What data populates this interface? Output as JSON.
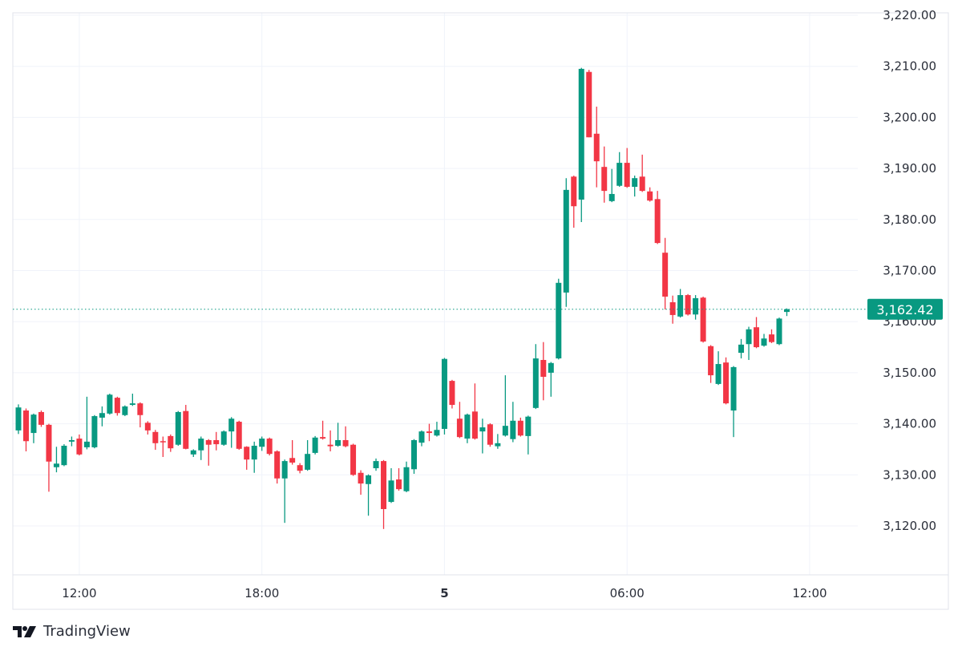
{
  "brand": {
    "name": "TradingView",
    "logo_text": "TV"
  },
  "colors": {
    "up": "#089981",
    "down": "#f23645",
    "grid": "#f0f3fa",
    "border": "#e0e3eb",
    "text": "#2a2e39"
  },
  "chart_data": {
    "type": "candlestick",
    "title": "",
    "xlabel": "",
    "ylabel": "",
    "ylim": [
      3120,
      3220
    ],
    "grid": true,
    "legend": "none",
    "y_ticks": [
      3120,
      3130,
      3140,
      3150,
      3160,
      3170,
      3180,
      3190,
      3200,
      3210,
      3220
    ],
    "y_tick_labels": [
      "3,120.00",
      "3,130.00",
      "3,140.00",
      "3,150.00",
      "3,160.00",
      "3,170.00",
      "3,180.00",
      "3,190.00",
      "3,200.00",
      "3,210.00",
      "3,220.00"
    ],
    "x_tick_labels": [
      "12:00",
      "18:00",
      "5",
      "06:00",
      "12:00"
    ],
    "last_price": 3162.42,
    "last_price_label": "3,162.42",
    "ohlc_fields": [
      "open",
      "high",
      "low",
      "close"
    ],
    "candles": [
      [
        3138.7,
        3143.8,
        3138,
        3143.2
      ],
      [
        3142.6,
        3143,
        3134.6,
        3136.6
      ],
      [
        3138.2,
        3142,
        3136.2,
        3141.8
      ],
      [
        3142.3,
        3142.6,
        3139.4,
        3139.8
      ],
      [
        3139.8,
        3140,
        3126.7,
        3132.6
      ],
      [
        3131.5,
        3135.5,
        3130.5,
        3132.2
      ],
      [
        3131.9,
        3136,
        3131.7,
        3135.7
      ],
      [
        3136.5,
        3137.5,
        3135.6,
        3136.8
      ],
      [
        3137.1,
        3137.9,
        3133.8,
        3134
      ],
      [
        3135.4,
        3145.3,
        3135,
        3136.5
      ],
      [
        3135.4,
        3141.7,
        3135.2,
        3141.5
      ],
      [
        3141.2,
        3143.4,
        3139.5,
        3142.1
      ],
      [
        3142,
        3145.9,
        3141.8,
        3145.7
      ],
      [
        3145.1,
        3145.3,
        3141.6,
        3142.1
      ],
      [
        3141.7,
        3143.6,
        3141.5,
        3143.4
      ],
      [
        3143.7,
        3145.9,
        3143.5,
        3144
      ],
      [
        3144,
        3144.2,
        3139.3,
        3141.7
      ],
      [
        3140.2,
        3140.5,
        3137.9,
        3138.7
      ],
      [
        3138.4,
        3138.8,
        3134.9,
        3136.2
      ],
      [
        3136.6,
        3137.5,
        3133.5,
        3136.4
      ],
      [
        3137.6,
        3137.9,
        3134.5,
        3135.2
      ],
      [
        3135.9,
        3142.5,
        3135.7,
        3142.3
      ],
      [
        3142.5,
        3143.7,
        3135,
        3135.1
      ],
      [
        3134,
        3135,
        3133.5,
        3134.8
      ],
      [
        3134.8,
        3137.5,
        3132.9,
        3137.1
      ],
      [
        3136.8,
        3137,
        3131.8,
        3135.9
      ],
      [
        3136.8,
        3138.4,
        3134.8,
        3136
      ],
      [
        3135.9,
        3138.7,
        3135.7,
        3138.5
      ],
      [
        3138.5,
        3141.3,
        3135.3,
        3141
      ],
      [
        3140.4,
        3140.6,
        3134.9,
        3135.1
      ],
      [
        3135.5,
        3135.6,
        3131,
        3133
      ],
      [
        3133,
        3136.5,
        3130.4,
        3135.7
      ],
      [
        3135.5,
        3137.5,
        3134.7,
        3137.1
      ],
      [
        3137.1,
        3137.3,
        3133.8,
        3134.1
      ],
      [
        3134.6,
        3134.8,
        3128.3,
        3129.3
      ],
      [
        3129.3,
        3133,
        3120.6,
        3132.7
      ],
      [
        3133.3,
        3136.8,
        3132,
        3132.4
      ],
      [
        3131.9,
        3132.3,
        3130.3,
        3130.8
      ],
      [
        3131,
        3136.8,
        3130.8,
        3134.1
      ],
      [
        3134.3,
        3137.6,
        3134,
        3137.3
      ],
      [
        3137.4,
        3140.6,
        3136.9,
        3137.1
      ],
      [
        3135.9,
        3138.7,
        3134.6,
        3135.6
      ],
      [
        3135.7,
        3140.2,
        3135.5,
        3136.8
      ],
      [
        3136.8,
        3139.5,
        3135.4,
        3135.6
      ],
      [
        3135.9,
        3136.1,
        3129.8,
        3130
      ],
      [
        3130.4,
        3130.9,
        3126.1,
        3128.3
      ],
      [
        3128.2,
        3130.1,
        3122,
        3129.9
      ],
      [
        3131.3,
        3133.2,
        3130.8,
        3132.7
      ],
      [
        3132.7,
        3132.9,
        3119.4,
        3123.3
      ],
      [
        3124.7,
        3131.3,
        3124.5,
        3128.9
      ],
      [
        3129.1,
        3131.3,
        3126.9,
        3127.2
      ],
      [
        3126.8,
        3132.6,
        3126.6,
        3131.5
      ],
      [
        3131.1,
        3137,
        3130.2,
        3136.8
      ],
      [
        3136.3,
        3138.7,
        3135.6,
        3138.5
      ],
      [
        3138.5,
        3140,
        3136.6,
        3138.2
      ],
      [
        3137.7,
        3140.4,
        3137.5,
        3138.8
      ],
      [
        3139,
        3152.9,
        3137.9,
        3152.7
      ],
      [
        3148.4,
        3148.6,
        3143,
        3143.7
      ],
      [
        3141,
        3144.3,
        3137.2,
        3137.4
      ],
      [
        3137.1,
        3142,
        3136.2,
        3141.8
      ],
      [
        3142.4,
        3147.9,
        3136.9,
        3137.1
      ],
      [
        3138.5,
        3141,
        3134.2,
        3139.3
      ],
      [
        3139.9,
        3140.1,
        3135.5,
        3135.9
      ],
      [
        3135.6,
        3138,
        3135.1,
        3136.2
      ],
      [
        3137.7,
        3149.5,
        3137.5,
        3139.6
      ],
      [
        3137,
        3144.3,
        3136.4,
        3140.6
      ],
      [
        3140.6,
        3141.2,
        3137.5,
        3137.7
      ],
      [
        3137.6,
        3141.6,
        3134,
        3141.4
      ],
      [
        3143.1,
        3155.6,
        3142.9,
        3152.8
      ],
      [
        3152.5,
        3156,
        3144.6,
        3149.2
      ],
      [
        3150,
        3152.1,
        3145.3,
        3151.9
      ],
      [
        3152.8,
        3168.4,
        3152.6,
        3167.6
      ],
      [
        3165.7,
        3188.1,
        3162.9,
        3185.8
      ],
      [
        3188.4,
        3188.6,
        3178.4,
        3182.6
      ],
      [
        3183.9,
        3209.7,
        3179.5,
        3209.5
      ],
      [
        3208.9,
        3209.3,
        3196.1,
        3196.1
      ],
      [
        3196.8,
        3202.1,
        3186.3,
        3191.4
      ],
      [
        3190.3,
        3194.3,
        3183.3,
        3185.6
      ],
      [
        3183.6,
        3189.9,
        3183.4,
        3185
      ],
      [
        3186.6,
        3193.2,
        3186.4,
        3191.1
      ],
      [
        3191.1,
        3194,
        3186.2,
        3186.4
      ],
      [
        3186.4,
        3188.6,
        3184.5,
        3188.1
      ],
      [
        3188.4,
        3192.7,
        3185.4,
        3185.6
      ],
      [
        3185.5,
        3186.3,
        3183.5,
        3183.7
      ],
      [
        3184,
        3185.6,
        3175.2,
        3175.4
      ],
      [
        3173.5,
        3176.4,
        3162.4,
        3164.9
      ],
      [
        3163.8,
        3165.1,
        3159.6,
        3161.3
      ],
      [
        3161,
        3166.4,
        3160.8,
        3165.2
      ],
      [
        3165.2,
        3165.4,
        3161.2,
        3161.4
      ],
      [
        3161.4,
        3165.2,
        3160.4,
        3164.6
      ],
      [
        3164.7,
        3164.9,
        3155.9,
        3156.1
      ],
      [
        3155.2,
        3155.4,
        3148,
        3149.5
      ],
      [
        3147.8,
        3154.2,
        3147.6,
        3151.7
      ],
      [
        3152,
        3153,
        3143.8,
        3144
      ],
      [
        3142.6,
        3151.3,
        3137.4,
        3151.1
      ],
      [
        3153.9,
        3156.6,
        3152.8,
        3155.5
      ],
      [
        3155.6,
        3159,
        3152.5,
        3158.5
      ],
      [
        3158.9,
        3160.9,
        3154.8,
        3155
      ],
      [
        3155.3,
        3157.6,
        3155.1,
        3156.7
      ],
      [
        3157.5,
        3158.5,
        3155.8,
        3156
      ],
      [
        3155.6,
        3160.8,
        3155.4,
        3160.6
      ],
      [
        3161.9,
        3162.6,
        3161.1,
        3162.42
      ]
    ]
  }
}
